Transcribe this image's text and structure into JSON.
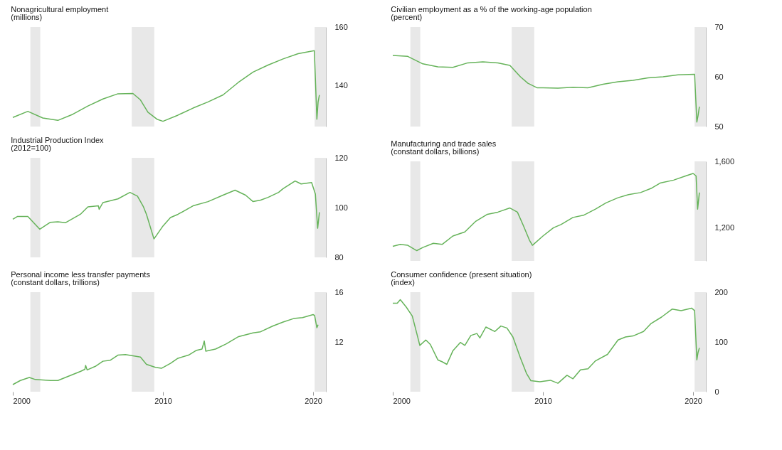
{
  "chart_data": [
    {
      "type": "line",
      "title": "Nonagricultural employment",
      "subtitle": "(millions)",
      "color": "#66b35a",
      "xlim": [
        2000,
        2020.85
      ],
      "xticks": [
        2000,
        2010,
        2020
      ],
      "ylim": [
        126,
        160
      ],
      "yticks": [
        140,
        160
      ],
      "tick_labels": "y",
      "bands": [
        {
          "axis": "x",
          "from": 2001.17,
          "to": 2001.83,
          "color": "#e8e8e8"
        },
        {
          "axis": "x",
          "from": 2007.92,
          "to": 2009.42,
          "color": "#e8e8e8"
        },
        {
          "axis": "x",
          "from": 2020.1,
          "to": 2020.85,
          "color": "#e8e8e8"
        }
      ],
      "x": [
        2000,
        2001,
        2002,
        2003,
        2004,
        2005,
        2006,
        2007,
        2008,
        2008.5,
        2009,
        2009.6,
        2010,
        2011,
        2012,
        2013,
        2014,
        2015,
        2016,
        2017,
        2018,
        2019,
        2020.08,
        2020.25,
        2020.33,
        2020.42
      ],
      "values": [
        129.1,
        131.2,
        128.9,
        128.1,
        130.2,
        133,
        135.4,
        137.2,
        137.3,
        135.1,
        130.9,
        128.5,
        127.8,
        129.9,
        132.3,
        134.4,
        136.8,
        141,
        144.6,
        147,
        149.1,
        150.9,
        151.9,
        128.5,
        134.4,
        136.8
      ]
    },
    {
      "type": "line",
      "title": "Civilian employment as a % of the working-age population",
      "subtitle": "(percent)",
      "color": "#66b35a",
      "xlim": [
        2000,
        2020.85
      ],
      "xticks": [
        2000,
        2010,
        2020
      ],
      "ylim": [
        50,
        70
      ],
      "yticks": [
        50,
        60,
        70
      ],
      "tick_labels": "y",
      "bands": [
        {
          "axis": "x",
          "from": 2001.17,
          "to": 2001.83,
          "color": "#e8e8e8"
        },
        {
          "axis": "x",
          "from": 2007.92,
          "to": 2009.42,
          "color": "#e8e8e8"
        },
        {
          "axis": "x",
          "from": 2020.1,
          "to": 2020.85,
          "color": "#e8e8e8"
        }
      ],
      "x": [
        2000,
        2001,
        2002,
        2003,
        2004,
        2005,
        2006,
        2007,
        2007.8,
        2008.5,
        2009,
        2009.6,
        2010,
        2011,
        2012,
        2013,
        2014,
        2015,
        2016,
        2017,
        2018,
        2019,
        2020.1,
        2020.25,
        2020.33,
        2020.42
      ],
      "values": [
        64.3,
        64.1,
        62.6,
        62.0,
        61.9,
        62.8,
        63.0,
        62.8,
        62.3,
        60,
        58.7,
        57.8,
        57.8,
        57.7,
        57.9,
        57.8,
        58.5,
        59.0,
        59.3,
        59.8,
        60.0,
        60.4,
        60.5,
        50.9,
        52.2,
        54.0
      ]
    },
    {
      "type": "line",
      "title": "Industrial Production Index",
      "subtitle": "(2012=100)",
      "color": "#66b35a",
      "xlim": [
        2000,
        2020.85
      ],
      "xticks": [
        2000,
        2010,
        2020
      ],
      "ylim": [
        80,
        120
      ],
      "yticks": [
        80,
        100,
        120
      ],
      "tick_labels": "y",
      "bands": [
        {
          "axis": "x",
          "from": 2001.17,
          "to": 2001.83,
          "color": "#e8e8e8"
        },
        {
          "axis": "x",
          "from": 2007.92,
          "to": 2009.42,
          "color": "#e8e8e8"
        },
        {
          "axis": "x",
          "from": 2020.1,
          "to": 2020.85,
          "color": "#e8e8e8"
        }
      ],
      "x": [
        2000,
        2000.3,
        2001,
        2001.8,
        2002.5,
        2003,
        2003.5,
        2004.5,
        2005,
        2005.7,
        2005.75,
        2006,
        2007,
        2007.8,
        2008.3,
        2008.7,
        2008.9,
        2009.4,
        2010,
        2010.5,
        2011,
        2012,
        2013,
        2014,
        2014.8,
        2015.5,
        2016,
        2016.5,
        2017,
        2017.7,
        2018,
        2018.8,
        2019.2,
        2019.9,
        2020.15,
        2020.3,
        2020.42
      ],
      "values": [
        95.3,
        96.4,
        96.4,
        91.3,
        94.1,
        94.3,
        93.9,
        97.3,
        100.3,
        100.7,
        99.3,
        102,
        103.5,
        106.1,
        104.6,
        100.3,
        97.3,
        87.4,
        92.6,
        96,
        97.3,
        100.7,
        102.4,
        105,
        107,
        105,
        102.4,
        103,
        104.1,
        106.1,
        107.6,
        110.7,
        109.5,
        110.1,
        105.4,
        91.7,
        98.1
      ]
    },
    {
      "type": "line",
      "title": "Manufacturing and trade sales",
      "subtitle": "(constant dollars, billions)",
      "color": "#66b35a",
      "xlim": [
        2000,
        2020.85
      ],
      "xticks": [
        2000,
        2010,
        2020
      ],
      "ylim": [
        1000,
        1600
      ],
      "yticks": [
        {
          "value": 1200,
          "label": "1,200"
        },
        {
          "value": 1600,
          "label": "1,600"
        }
      ],
      "tick_labels": "y",
      "bands": [
        {
          "axis": "x",
          "from": 2001.17,
          "to": 2001.83,
          "color": "#e8e8e8"
        },
        {
          "axis": "x",
          "from": 2007.92,
          "to": 2009.42,
          "color": "#e8e8e8"
        },
        {
          "axis": "x",
          "from": 2020.1,
          "to": 2020.85,
          "color": "#e8e8e8"
        }
      ],
      "x": [
        2000,
        2000.5,
        2001,
        2001.6,
        2002,
        2002.7,
        2003.3,
        2004,
        2004.8,
        2005.5,
        2006.3,
        2007,
        2007.8,
        2008.3,
        2008.7,
        2009.1,
        2009.3,
        2010,
        2010.7,
        2011.2,
        2012,
        2012.7,
        2013.5,
        2014.2,
        2015,
        2015.7,
        2016.5,
        2017.2,
        2017.8,
        2018.7,
        2019.5,
        2020.0,
        2020.2,
        2020.3,
        2020.42
      ],
      "values": [
        1088,
        1100,
        1094,
        1062,
        1081,
        1106,
        1100,
        1150,
        1175,
        1237,
        1281,
        1294,
        1319,
        1294,
        1212,
        1125,
        1094,
        1150,
        1200,
        1219,
        1262,
        1275,
        1312,
        1350,
        1381,
        1400,
        1412,
        1437,
        1469,
        1487,
        1512,
        1527,
        1512,
        1312,
        1412
      ]
    },
    {
      "type": "line",
      "title": "Personal income less transfer payments",
      "subtitle": "(constant dollars, trillions)",
      "color": "#66b35a",
      "xlim": [
        2000,
        2020.85
      ],
      "xticks": [
        2000,
        2010,
        2020
      ],
      "ylim": [
        8,
        16
      ],
      "yticks": [
        12,
        16
      ],
      "bands": [
        {
          "axis": "x",
          "from": 2001.17,
          "to": 2001.83,
          "color": "#e8e8e8"
        },
        {
          "axis": "x",
          "from": 2007.92,
          "to": 2009.42,
          "color": "#e8e8e8"
        },
        {
          "axis": "x",
          "from": 2020.1,
          "to": 2020.85,
          "color": "#e8e8e8"
        }
      ],
      "x": [
        2000,
        2000.5,
        2001.1,
        2001.5,
        2002.5,
        2003,
        2003.5,
        2004.5,
        2004.8,
        2004.85,
        2004.95,
        2005.5,
        2006,
        2006.5,
        2007,
        2007.5,
        2008,
        2008.5,
        2008.9,
        2009.5,
        2009.9,
        2010.5,
        2011,
        2011.7,
        2012.2,
        2012.6,
        2012.75,
        2012.85,
        2013.5,
        2014.2,
        2015,
        2016,
        2016.5,
        2017.3,
        2018,
        2018.7,
        2019.3,
        2020.0,
        2020.1,
        2020.25,
        2020.33
      ],
      "values": [
        8.57,
        8.9,
        9.14,
        8.98,
        8.9,
        8.9,
        9.14,
        9.63,
        9.8,
        10.12,
        9.75,
        10.04,
        10.45,
        10.53,
        10.94,
        10.99,
        10.89,
        10.78,
        10.2,
        9.96,
        9.88,
        10.28,
        10.69,
        10.94,
        11.31,
        11.43,
        12.08,
        11.26,
        11.43,
        11.84,
        12.41,
        12.73,
        12.82,
        13.27,
        13.6,
        13.88,
        13.96,
        14.2,
        14.12,
        13.14,
        13.39
      ]
    },
    {
      "type": "line",
      "title": "Consumer confidence (present situation)",
      "subtitle": "(index)",
      "color": "#66b35a",
      "xlim": [
        2000,
        2020.85
      ],
      "xticks": [
        2000,
        2010,
        2020
      ],
      "ylim": [
        0,
        200
      ],
      "yticks": [
        0,
        100,
        200
      ],
      "bands": [
        {
          "axis": "x",
          "from": 2001.17,
          "to": 2001.83,
          "color": "#e8e8e8"
        },
        {
          "axis": "x",
          "from": 2007.92,
          "to": 2009.42,
          "color": "#e8e8e8"
        },
        {
          "axis": "x",
          "from": 2020.1,
          "to": 2020.85,
          "color": "#e8e8e8"
        }
      ],
      "x": [
        2000,
        2000.3,
        2000.5,
        2000.9,
        2001.3,
        2001.6,
        2001.8,
        2002.2,
        2002.5,
        2003,
        2003.3,
        2003.6,
        2004,
        2004.5,
        2004.8,
        2005.2,
        2005.6,
        2005.8,
        2006.2,
        2006.8,
        2007.2,
        2007.6,
        2008,
        2008.5,
        2008.9,
        2009.2,
        2009.8,
        2010.5,
        2011,
        2011.6,
        2012,
        2012.5,
        2013,
        2013.5,
        2014.3,
        2015,
        2015.5,
        2016,
        2016.7,
        2017.2,
        2017.9,
        2018.6,
        2019.2,
        2019.9,
        2020.1,
        2020.25,
        2020.33,
        2020.42
      ],
      "values": [
        178,
        178,
        185,
        170,
        152,
        117,
        93,
        104,
        95,
        64,
        60,
        55,
        82,
        99,
        93,
        113,
        117,
        108,
        130,
        121,
        132,
        128,
        110,
        68,
        37,
        22,
        20,
        23,
        17,
        33,
        26,
        44,
        46,
        62,
        75,
        104,
        110,
        112,
        121,
        137,
        150,
        166,
        163,
        168,
        163,
        64,
        79,
        88
      ]
    }
  ]
}
